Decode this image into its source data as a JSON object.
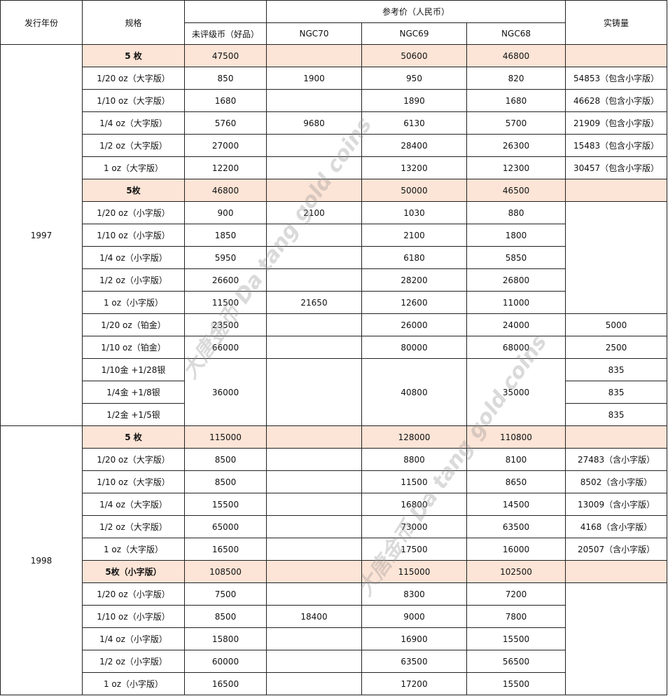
{
  "headers": {
    "year": "发行年份",
    "spec": "规格",
    "reference_price": "参考价（人民币）",
    "ungraded": "未评级币（好品）",
    "ngc70": "NGC70",
    "ngc69": "NGC69",
    "ngc68": "NGC68",
    "mintage": "实铸量"
  },
  "watermark": {
    "cn": "大唐金币",
    "en": "Da tang gold coins"
  },
  "set_color": "#FCE4D6",
  "years": [
    {
      "year": "1997",
      "rows": [
        {
          "set": true,
          "spec": "5 枚",
          "ungraded": "47500",
          "ngc70": "",
          "ngc69": "50600",
          "ngc68": "46800",
          "mintage": ""
        },
        {
          "spec": "1/20 oz（大字版）",
          "ungraded": "850",
          "ngc70": "1900",
          "ngc69": "950",
          "ngc68": "820",
          "mintage": "54853（包含小字版）"
        },
        {
          "spec": "1/10 oz（大字版）",
          "ungraded": "1680",
          "ngc70": "",
          "ngc69": "1890",
          "ngc68": "1680",
          "mintage": "46628（包含小字版）"
        },
        {
          "spec": "1/4 oz（大字版）",
          "ungraded": "5760",
          "ngc70": "9680",
          "ngc69": "6130",
          "ngc68": "5700",
          "mintage": "21909（包含小字版）"
        },
        {
          "spec": "1/2 oz（大字版）",
          "ungraded": "27000",
          "ngc70": "",
          "ngc69": "28400",
          "ngc68": "26300",
          "mintage": "15483（包含小字版）"
        },
        {
          "spec": "1 oz（大字版）",
          "ungraded": "12200",
          "ngc70": "",
          "ngc69": "13200",
          "ngc68": "12300",
          "mintage": "30457（包含小字版）"
        },
        {
          "set": true,
          "spec": "5枚",
          "ungraded": "46800",
          "ngc70": "",
          "ngc69": "50000",
          "ngc68": "46500",
          "mintage": ""
        },
        {
          "spec": "1/20 oz（小字版）",
          "ungraded": "900",
          "ngc70": "2100",
          "ngc69": "1030",
          "ngc68": "880",
          "mintage": ""
        },
        {
          "spec": "1/10 oz（小字版）",
          "ungraded": "1850",
          "ngc70": "",
          "ngc69": "2100",
          "ngc68": "1800"
        },
        {
          "spec": "1/4 oz（小字版）",
          "ungraded": "5950",
          "ngc70": "",
          "ngc69": "6180",
          "ngc68": "5850"
        },
        {
          "spec": "1/2 oz（小字版）",
          "ungraded": "26600",
          "ngc70": "",
          "ngc69": "28200",
          "ngc68": "26800"
        },
        {
          "spec": "1 oz（小字版）",
          "ungraded": "11500",
          "ngc70": "21650",
          "ngc69": "12600",
          "ngc68": "11000"
        },
        {
          "spec": "1/20 oz（铂金）",
          "ungraded": "23500",
          "ngc70": "",
          "ngc69": "26000",
          "ngc68": "24000",
          "mintage": "5000"
        },
        {
          "spec": "1/10 oz（铂金）",
          "ungraded": "66000",
          "ngc70": "",
          "ngc69": "80000",
          "ngc68": "68000",
          "mintage": "2500"
        },
        {
          "spec": "1/10金 +1/28银",
          "ungraded": "36000",
          "ngc70": "",
          "ngc69": "40800",
          "ngc68": "35000",
          "mintage": "835"
        },
        {
          "spec": "1/4金 +1/8银",
          "mintage": "835"
        },
        {
          "spec": "1/2金 +1/5银",
          "mintage": "835"
        }
      ]
    },
    {
      "year": "1998",
      "rows": [
        {
          "set": true,
          "spec": "5 枚",
          "ungraded": "115000",
          "ngc70": "",
          "ngc69": "128000",
          "ngc68": "110800",
          "mintage": ""
        },
        {
          "spec": "1/20 oz（大字版）",
          "ungraded": "8500",
          "ngc70": "",
          "ngc69": "8800",
          "ngc68": "8100",
          "mintage": "27483（含小字版）"
        },
        {
          "spec": "1/10 oz（大字版）",
          "ungraded": "8500",
          "ngc70": "",
          "ngc69": "11500",
          "ngc68": "8650",
          "mintage": "8502（含小字版）"
        },
        {
          "spec": "1/4 oz（大字版）",
          "ungraded": "15500",
          "ngc70": "",
          "ngc69": "16800",
          "ngc68": "14500",
          "mintage": "13009（含小字版）"
        },
        {
          "spec": "1/2 oz（大字版）",
          "ungraded": "65000",
          "ngc70": "",
          "ngc69": "73000",
          "ngc68": "63500",
          "mintage": "4168（含小字版）"
        },
        {
          "spec": "1 oz（大字版）",
          "ungraded": "16500",
          "ngc70": "",
          "ngc69": "17500",
          "ngc68": "16000",
          "mintage": "20507（含小字版）"
        },
        {
          "set": true,
          "spec": "5枚（小字版）",
          "ungraded": "108500",
          "ngc70": "",
          "ngc69": "115000",
          "ngc68": "102500",
          "mintage": ""
        },
        {
          "spec": "1/20 oz（小字版）",
          "ungraded": "7500",
          "ngc70": "",
          "ngc69": "8300",
          "ngc68": "7200",
          "mintage": ""
        },
        {
          "spec": "1/10 oz（小字版）",
          "ungraded": "8500",
          "ngc70": "18400",
          "ngc69": "9000",
          "ngc68": "7800"
        },
        {
          "spec": "1/4 oz（小字版）",
          "ungraded": "15800",
          "ngc70": "",
          "ngc69": "16900",
          "ngc68": "15500"
        },
        {
          "spec": "1/2 oz（小字版）",
          "ungraded": "60000",
          "ngc70": "",
          "ngc69": "63500",
          "ngc68": "56500"
        },
        {
          "spec": "1 oz（小字版）",
          "ungraded": "16500",
          "ngc70": "",
          "ngc69": "17200",
          "ngc68": "15500"
        }
      ]
    }
  ]
}
